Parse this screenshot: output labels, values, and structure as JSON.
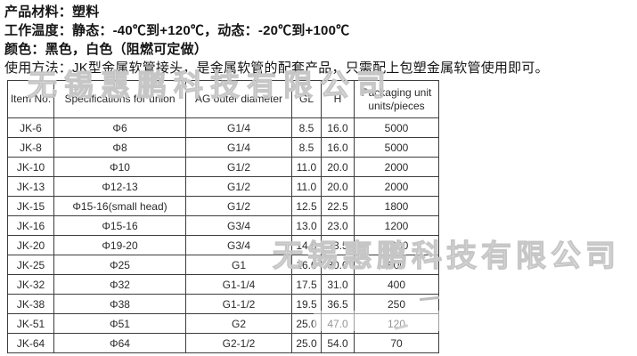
{
  "product_info": {
    "lines": [
      "产品材料：塑料",
      "工作温度：静态：-40℃到+120℃，动态：-20℃到+100℃",
      "颜色：黑色，白色（阻燃可定做）",
      "使用方法：JK型金属软管接头，是金属软管的配套产品，只需配上包塑金属软管使用即可。"
    ]
  },
  "table": {
    "headers": [
      "Item No.",
      "Specifications for union",
      "AG outer diameter",
      "GL",
      "H",
      "Packaging unit units/pieces"
    ],
    "rows": [
      [
        "JK-6",
        "Φ6",
        "G1/4",
        "8.5",
        "16.0",
        "5000"
      ],
      [
        "JK-8",
        "Φ8",
        "G1/4",
        "8.5",
        "16.0",
        "5000"
      ],
      [
        "JK-10",
        "Φ10",
        "G1/2",
        "11.0",
        "20.0",
        "2000"
      ],
      [
        "JK-13",
        "Φ12-13",
        "G1/2",
        "11.0",
        "20.0",
        "2000"
      ],
      [
        "JK-15",
        "Φ15-16(small head)",
        "G1/2",
        "12.5",
        "22.5",
        "1800"
      ],
      [
        "JK-16",
        "Φ15-16",
        "G3/4",
        "13.0",
        "23.0",
        "1200"
      ],
      [
        "JK-20",
        "Φ19-20",
        "G3/4",
        "14.0",
        "23.5",
        "1200"
      ],
      [
        "JK-25",
        "Φ25",
        "G1",
        "16.0",
        "30.0",
        "600"
      ],
      [
        "JK-32",
        "Φ32",
        "G1-1/4",
        "17.5",
        "31.0",
        "400"
      ],
      [
        "JK-38",
        "Φ38",
        "G1-1/2",
        "19.5",
        "36.5",
        "250"
      ],
      [
        "JK-51",
        "Φ51",
        "G2",
        "25.0",
        "47.0",
        "120"
      ],
      [
        "JK-64",
        "Φ64",
        "G2-1/2",
        "25.0",
        "54.0",
        "70"
      ]
    ]
  },
  "watermark": {
    "text": "无锡惠鹏科技有限公司"
  },
  "colors": {
    "table_border": "#3d3d3d",
    "text": "#141414",
    "watermark": "#c6c6c6"
  }
}
